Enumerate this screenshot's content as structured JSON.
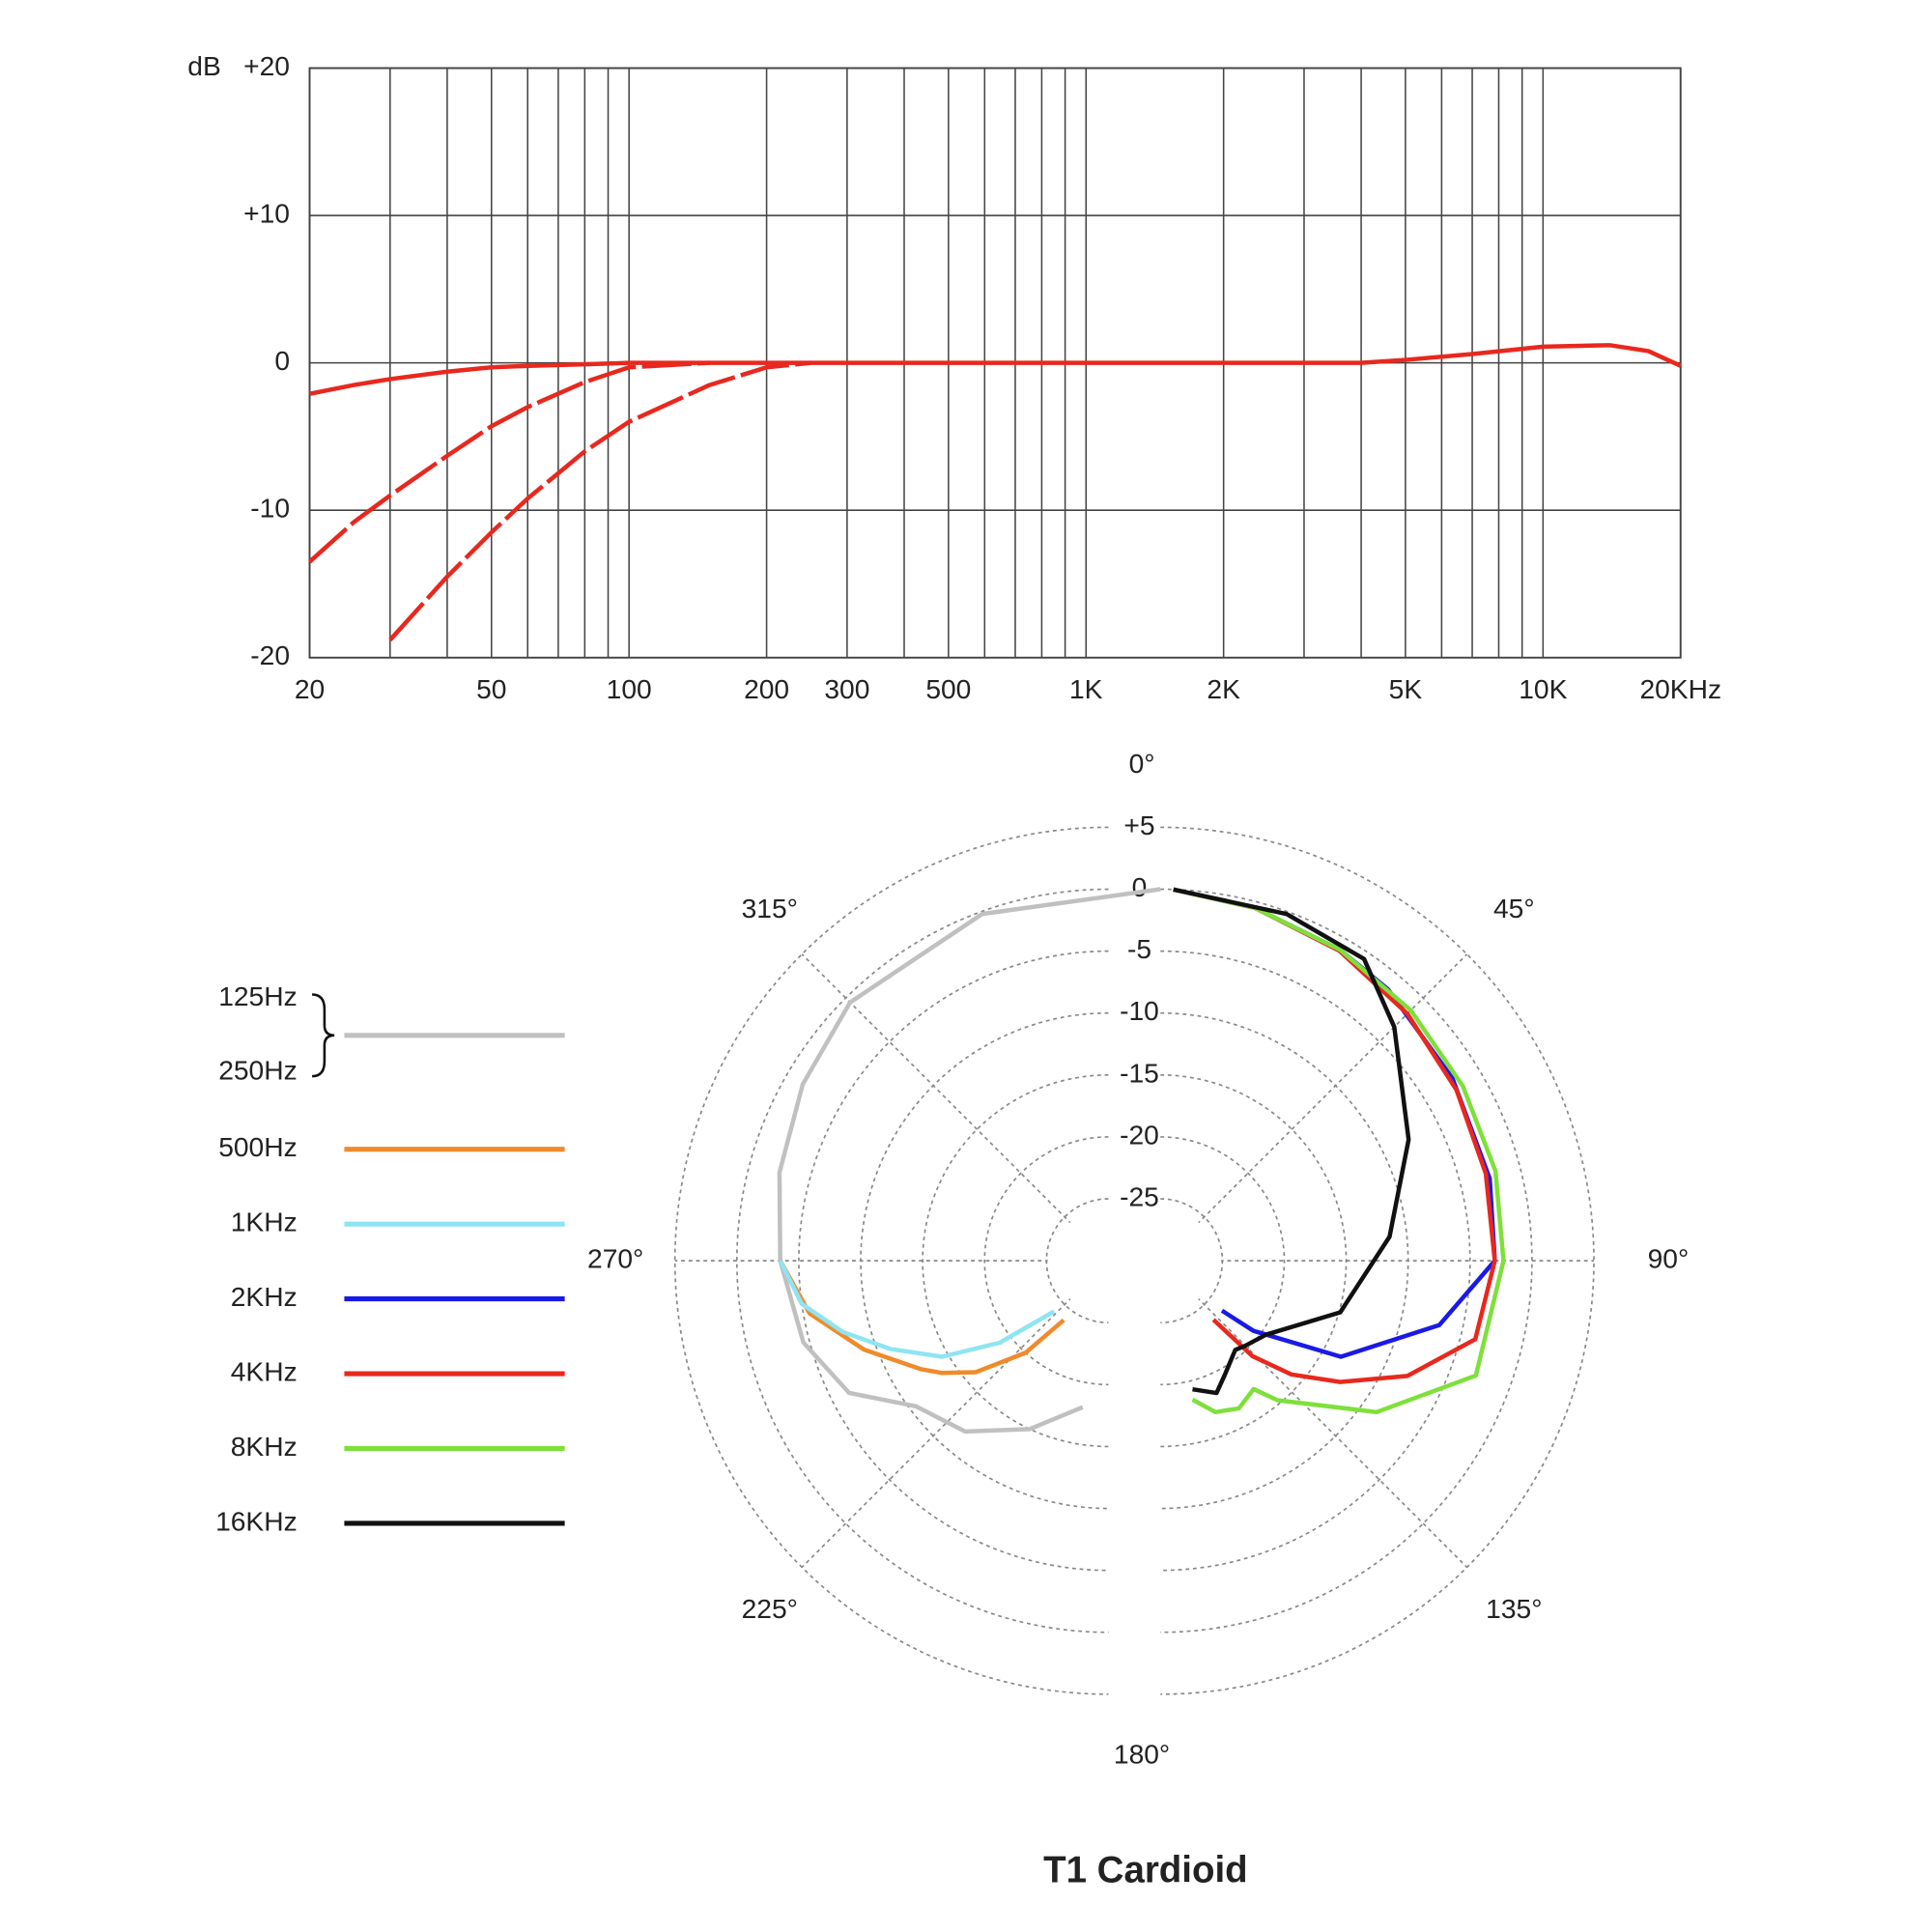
{
  "chart_data": [
    {
      "type": "line",
      "ylabel": "dB",
      "xscale": "log",
      "xlim": [
        20,
        20000
      ],
      "ylim": [
        -20,
        20
      ],
      "xticks": [
        20,
        50,
        100,
        200,
        300,
        500,
        {
          "value": 1000,
          "label": "1K"
        },
        {
          "value": 2000,
          "label": "2K"
        },
        {
          "value": 5000,
          "label": "5K"
        },
        {
          "value": 10000,
          "label": "10K"
        },
        {
          "value": 20000,
          "label": "20KHz"
        }
      ],
      "xgrid": [
        30,
        40,
        60,
        70,
        80,
        90,
        400,
        600,
        700,
        800,
        900,
        3000,
        4000,
        6000,
        7000,
        8000,
        9000
      ],
      "yticks": [
        {
          "value": 20,
          "label": "+20"
        },
        {
          "value": 10,
          "label": "+10"
        },
        0,
        -10,
        -20
      ],
      "grid": true,
      "x": [
        20,
        25,
        30,
        40,
        50,
        60,
        80,
        100,
        150,
        200,
        250,
        300,
        500,
        1000,
        2000,
        4000,
        5000,
        7000,
        10000,
        14000,
        17000,
        20000
      ],
      "series": [
        {
          "color": "#e8281e",
          "dashed": false,
          "values": [
            -2.1,
            -1.5,
            -1.1,
            -0.6,
            -0.3,
            -0.2,
            -0.1,
            0,
            0,
            0,
            0,
            0,
            0,
            0,
            0,
            0,
            0.2,
            0.6,
            1.1,
            1.2,
            0.8,
            -0.2
          ]
        },
        {
          "color": "#e8281e",
          "dashed": true,
          "values": [
            -13.5,
            -10.8,
            -9,
            -6.3,
            -4.3,
            -3,
            -1.3,
            -0.3,
            0,
            null,
            null,
            null,
            null,
            null,
            null,
            null,
            null,
            null,
            null,
            null,
            null,
            null
          ]
        },
        {
          "color": "#e8281e",
          "dashed": true,
          "values": [
            null,
            null,
            -18.8,
            -14.5,
            -11.5,
            -9.2,
            -6,
            -4,
            -1.5,
            -0.3,
            0,
            null,
            null,
            null,
            null,
            null,
            null,
            null,
            null,
            null,
            null,
            null
          ]
        }
      ]
    },
    {
      "type": "polar",
      "title": "T1 Cardioid",
      "rlim": [
        -30,
        5
      ],
      "rticks": [
        {
          "value": 5,
          "label": "+5"
        },
        0,
        -5,
        -10,
        -15,
        -20,
        -25
      ],
      "thetaticks": [
        {
          "value": 0,
          "label": "0°"
        },
        {
          "value": 45,
          "label": "45°"
        },
        {
          "value": 90,
          "label": "90°"
        },
        {
          "value": 135,
          "label": "135°"
        },
        {
          "value": 180,
          "label": "180°"
        },
        {
          "value": 225,
          "label": "225°"
        },
        {
          "value": 270,
          "label": "270°"
        },
        {
          "value": 315,
          "label": "315°"
        }
      ],
      "series": [
        {
          "names": [
            "125Hz",
            "250Hz"
          ],
          "color": "#c0c0c0",
          "theta": [
            360,
            340,
            315,
            300,
            285,
            270,
            255,
            243,
            233,
            220,
            205,
            190
          ],
          "values": [
            0,
            -0.2,
            -0.5,
            -1.5,
            -2.5,
            -3.5,
            -4.5,
            -6.5,
            -10.5,
            -12,
            -15,
            -18
          ]
        },
        {
          "name": "500Hz",
          "color": "#f08a2a",
          "theta": [
            270,
            260,
            250,
            240,
            236,
            230,
            222,
            217
          ],
          "values": [
            -3.5,
            -5.5,
            -9,
            -12.5,
            -13.8,
            -16,
            -20,
            -24
          ]
        },
        {
          "name": "1KHz",
          "color": "#8ee4f2",
          "theta": [
            270,
            262,
            255,
            248,
            240,
            233,
            227
          ],
          "values": [
            -3.5,
            -5,
            -7.8,
            -11,
            -14.5,
            -19,
            -24
          ]
        },
        {
          "name": "2KHz",
          "color": "#1a1ae6",
          "theta": [
            2,
            15,
            30,
            40,
            58,
            76,
            90,
            103,
            118,
            127,
            129
          ],
          "values": [
            0,
            -0.5,
            -1,
            -1.4,
            -2.2,
            -2.6,
            -3,
            -6.9,
            -13.5,
            -20.6,
            -23.6
          ]
        },
        {
          "name": "4KHz",
          "color": "#e8281e",
          "theta": [
            2,
            15,
            30,
            45,
            60,
            75,
            90,
            104,
            115,
            124,
            131,
            136,
            138
          ],
          "values": [
            0,
            -0.5,
            -1.1,
            -1.8,
            -2.4,
            -2.8,
            -3,
            -3.8,
            -8,
            -12.5,
            -16,
            -19.3,
            -23.6
          ]
        },
        {
          "name": "8KHz",
          "color": "#7ee03a",
          "theta": [
            2,
            15,
            30,
            45,
            60,
            75,
            90,
            110,
            125,
            140,
            144,
            152,
            160,
            167
          ],
          "values": [
            0,
            -0.5,
            -1,
            -1.4,
            -1.8,
            -2,
            -2.3,
            -2.9,
            -8.7,
            -15.3,
            -17.2,
            -16.5,
            -17,
            -18.5
          ]
        },
        {
          "name": "16KHz",
          "color": "#111111",
          "theta": [
            2,
            20,
            34,
            45,
            64,
            84,
            106,
            125,
            135,
            140,
            150,
            157,
            166
          ],
          "values": [
            0,
            -0.2,
            -0.6,
            -3.3,
            -7.7,
            -11.4,
            -14.9,
            -19.6,
            -20.3,
            -20.6,
            -19.5,
            -18.4,
            -19.3
          ]
        }
      ]
    }
  ]
}
